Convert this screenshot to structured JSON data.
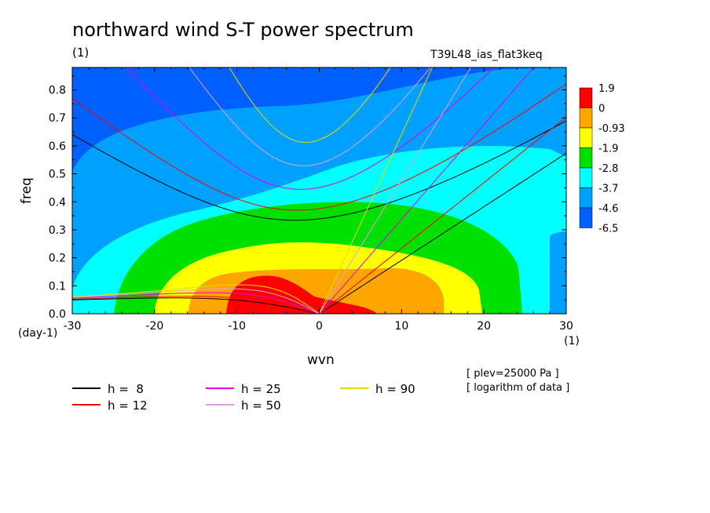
{
  "chart_data": {
    "type": "heatmap",
    "title": "northward wind S-T power spectrum",
    "unit_label": "(1)",
    "experiment": "T39L48_ias_flat3keq",
    "xlabel": "wvn",
    "ylabel": "freq",
    "x_unit": "(1)",
    "y_unit": "(day-1)",
    "xlim": [
      -30,
      30
    ],
    "ylim": [
      0,
      0.88
    ],
    "x_ticks": [
      "-30",
      "-20",
      "-10",
      "0",
      "10",
      "20",
      "30"
    ],
    "y_ticks": [
      "0.0",
      "0.1",
      "0.2",
      "0.3",
      "0.4",
      "0.5",
      "0.6",
      "0.7",
      "0.8"
    ],
    "colorbar": {
      "labels": [
        "1.9",
        "0",
        "-0.93",
        "-1.9",
        "-2.8",
        "-3.7",
        "-4.6",
        "-6.5"
      ],
      "colors": [
        "#ff0000",
        "#ffa500",
        "#ffff00",
        "#00e000",
        "#00ffff",
        "#00a0ff",
        "#0060ff"
      ]
    },
    "notes": [
      "[ plev=25000 Pa ]",
      "[ logarithm of data ]"
    ],
    "dispersion_curves": [
      {
        "label": "h =  8",
        "color": "#000000"
      },
      {
        "label": "h = 12",
        "color": "#ff0000"
      },
      {
        "label": "h = 25",
        "color": "#e000e0"
      },
      {
        "label": "h = 50",
        "color": "#e0a0e0"
      },
      {
        "label": "h = 90",
        "color": "#e0e000"
      }
    ]
  }
}
